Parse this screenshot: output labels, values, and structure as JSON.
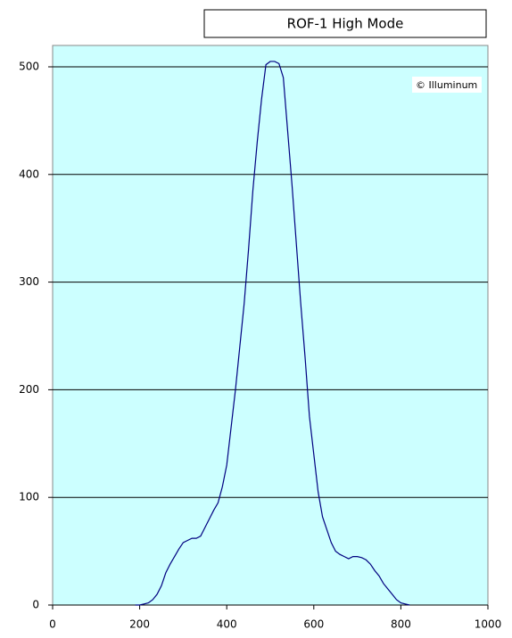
{
  "chart_data": {
    "type": "line",
    "title": "ROF-1 High Mode",
    "annotation": "© Illuminum",
    "x": [
      190,
      200,
      210,
      220,
      230,
      240,
      250,
      260,
      270,
      280,
      290,
      300,
      310,
      320,
      330,
      340,
      350,
      360,
      370,
      380,
      390,
      400,
      410,
      420,
      430,
      440,
      450,
      460,
      470,
      480,
      490,
      500,
      510,
      520,
      530,
      540,
      550,
      560,
      570,
      580,
      590,
      600,
      610,
      620,
      630,
      640,
      650,
      660,
      670,
      680,
      690,
      700,
      710,
      720,
      730,
      740,
      750,
      760,
      770,
      780,
      790,
      800,
      810,
      820
    ],
    "values": [
      0,
      0,
      1,
      2,
      5,
      10,
      18,
      30,
      38,
      45,
      52,
      58,
      60,
      62,
      62,
      64,
      72,
      80,
      88,
      95,
      110,
      130,
      165,
      200,
      240,
      280,
      330,
      385,
      430,
      470,
      502,
      505,
      505,
      503,
      490,
      440,
      390,
      335,
      280,
      230,
      175,
      140,
      105,
      82,
      70,
      58,
      50,
      47,
      45,
      43,
      45,
      45,
      44,
      42,
      38,
      32,
      27,
      20,
      15,
      10,
      5,
      2,
      1,
      0
    ],
    "color": "#000080",
    "xlim": [
      0,
      1000
    ],
    "xticks": [
      0,
      200,
      400,
      600,
      800,
      1000
    ],
    "ylim": [
      0,
      500
    ],
    "yticks": [
      0,
      100,
      200,
      300,
      400,
      500
    ],
    "grid": true
  }
}
